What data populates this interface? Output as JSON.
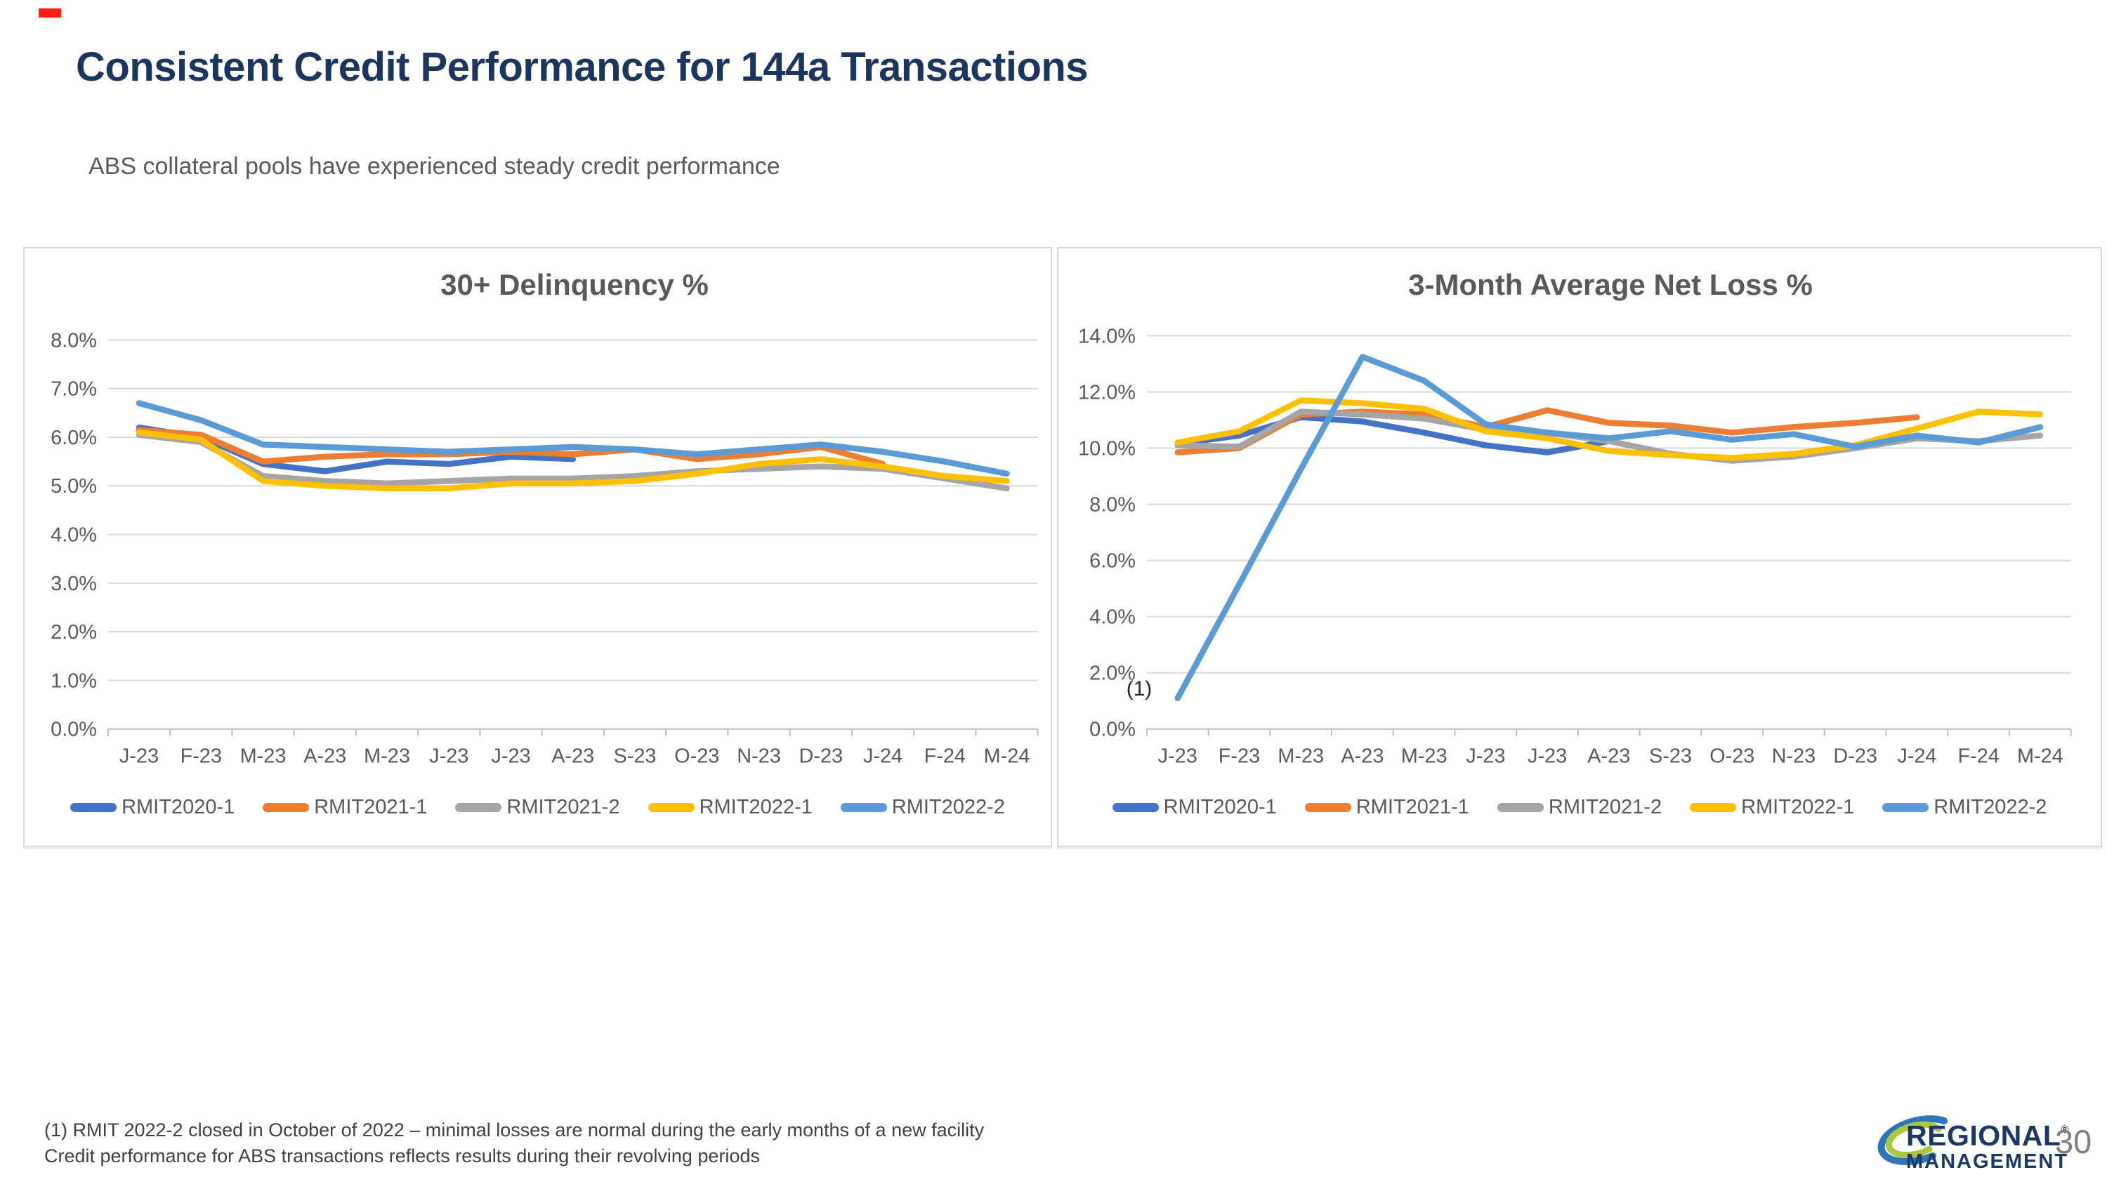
{
  "page": {
    "title": "Consistent Credit Performance for 144a Transactions",
    "subtitle": "ABS collateral pools have experienced steady credit performance"
  },
  "chart_data": [
    {
      "type": "line",
      "title": "30+ Delinquency %",
      "ylabel": "",
      "xlabel": "",
      "ylim": [
        0,
        8
      ],
      "ytick_step": 1,
      "ytick_labels": [
        "8.0%",
        "7.0%",
        "6.0%",
        "5.0%",
        "4.0%",
        "3.0%",
        "2.0%",
        "1.0%",
        "0.0%"
      ],
      "grid": true,
      "legend_position": "bottom",
      "categories": [
        "J-23",
        "F-23",
        "M-23",
        "A-23",
        "M-23",
        "J-23",
        "J-23",
        "A-23",
        "S-23",
        "O-23",
        "N-23",
        "D-23",
        "J-24",
        "F-24",
        "M-24"
      ],
      "series": [
        {
          "name": "RMIT2020-1",
          "color": "#4472C4",
          "values": [
            6.2,
            6.0,
            5.45,
            5.3,
            5.5,
            5.45,
            5.6,
            5.55,
            null,
            null,
            null,
            null,
            null,
            null,
            null
          ]
        },
        {
          "name": "RMIT2021-1",
          "color": "#ED7D31",
          "values": [
            6.15,
            6.05,
            5.5,
            5.6,
            5.65,
            5.65,
            5.7,
            5.65,
            5.75,
            5.55,
            5.65,
            5.8,
            5.45,
            null,
            null
          ]
        },
        {
          "name": "RMIT2021-2",
          "color": "#A5A5A5",
          "values": [
            6.05,
            5.9,
            5.2,
            5.1,
            5.05,
            5.1,
            5.15,
            5.15,
            5.2,
            5.3,
            5.35,
            5.4,
            5.35,
            5.15,
            4.95
          ]
        },
        {
          "name": "RMIT2022-1",
          "color": "#FFC000",
          "values": [
            6.1,
            5.95,
            5.1,
            5.0,
            4.95,
            4.95,
            5.05,
            5.05,
            5.1,
            5.25,
            5.45,
            5.55,
            5.4,
            5.2,
            5.1
          ]
        },
        {
          "name": "RMIT2022-2",
          "color": "#5B9BD5",
          "values": [
            6.7,
            6.35,
            5.85,
            5.8,
            5.75,
            5.7,
            5.75,
            5.8,
            5.75,
            5.65,
            5.75,
            5.85,
            5.7,
            5.5,
            5.25
          ]
        }
      ],
      "annotation": null
    },
    {
      "type": "line",
      "title": "3-Month Average Net Loss %",
      "ylabel": "",
      "xlabel": "",
      "ylim": [
        0,
        14
      ],
      "ytick_step": 2,
      "ytick_labels": [
        "14.0%",
        "12.0%",
        "10.0%",
        "8.0%",
        "6.0%",
        "4.0%",
        "2.0%",
        "0.0%"
      ],
      "grid": true,
      "legend_position": "bottom",
      "categories": [
        "J-23",
        "F-23",
        "M-23",
        "A-23",
        "M-23",
        "J-23",
        "J-23",
        "A-23",
        "S-23",
        "O-23",
        "N-23",
        "D-23",
        "J-24",
        "F-24",
        "M-24"
      ],
      "series": [
        {
          "name": "RMIT2020-1",
          "color": "#4472C4",
          "values": [
            10.15,
            10.45,
            11.1,
            10.95,
            10.55,
            10.1,
            9.85,
            10.25,
            null,
            null,
            null,
            null,
            null,
            null,
            null
          ]
        },
        {
          "name": "RMIT2021-1",
          "color": "#ED7D31",
          "values": [
            9.85,
            10.0,
            11.2,
            11.3,
            11.2,
            10.75,
            11.35,
            10.9,
            10.8,
            10.55,
            10.75,
            10.9,
            11.1,
            null,
            null
          ]
        },
        {
          "name": "RMIT2021-2",
          "color": "#A5A5A5",
          "values": [
            10.1,
            10.05,
            11.3,
            11.2,
            11.05,
            10.65,
            10.55,
            10.25,
            9.8,
            9.55,
            9.7,
            10.0,
            10.35,
            10.25,
            10.45
          ]
        },
        {
          "name": "RMIT2022-1",
          "color": "#FFC000",
          "values": [
            10.2,
            10.6,
            11.7,
            11.6,
            11.4,
            10.6,
            10.35,
            9.9,
            9.75,
            9.65,
            9.8,
            10.1,
            10.7,
            11.3,
            11.2
          ]
        },
        {
          "name": "RMIT2022-2",
          "color": "#5B9BD5",
          "values": [
            1.1,
            5.15,
            9.25,
            13.25,
            12.4,
            10.85,
            10.55,
            10.35,
            10.6,
            10.3,
            10.5,
            10.05,
            10.45,
            10.2,
            10.75
          ]
        }
      ],
      "annotation": {
        "text": "(1)",
        "series_index": 4,
        "point_index": 0,
        "dx": -55,
        "dy": -4
      }
    }
  ],
  "footnotes": [
    "(1)  RMIT 2022-2 closed in October of 2022 – minimal losses are normal during the early months of a new facility",
    "Credit performance for ABS transactions reflects results during their revolving periods"
  ],
  "logo": {
    "line1": "REGIONAL",
    "registered": "®",
    "line2": "MANAGEMENT"
  },
  "page_number": "30",
  "colors": {
    "title_navy": "#1c355e",
    "text_gray": "#595959",
    "gridline": "#d9d9d9",
    "axis_line": "#bfbfbf",
    "accent_red_mark": "#ff1d14",
    "logo_blue": "#2e74b8",
    "logo_green": "#a9c83c",
    "logo_navy": "#1b3763",
    "page_number_gray": "#7f7f7f"
  }
}
